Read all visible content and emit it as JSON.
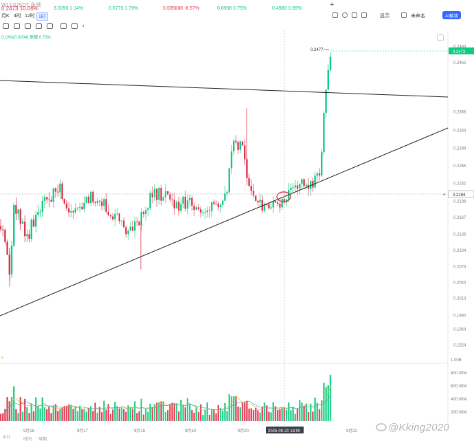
{
  "ticker": {
    "main_symbol": "WLFIUSDT.永续",
    "main_price": "0.2473",
    "main_change": "10.06%",
    "items": [
      {
        "price": "3.0090",
        "change": "1.14%",
        "dir": "up"
      },
      {
        "price": "0.6775",
        "change": "1.79%",
        "dir": "up"
      },
      {
        "price": "0.035088",
        "change": "-0.57%",
        "dir": "dn"
      },
      {
        "price": "0.8998",
        "change": "0.75%",
        "dir": "up"
      },
      {
        "price": "0.4980",
        "change": "0.99%",
        "dir": "up"
      }
    ]
  },
  "toolbar": {
    "timeframes": [
      "月K",
      "4时",
      "12时",
      "1时"
    ],
    "active_timeframe": "1时",
    "display_label": "显示",
    "theme_label": "未命名",
    "ai_label": "AI解读"
  },
  "indicator_line": "0.18%(0.0004)  振幅 0.73%",
  "current_price_tag": "0.2473",
  "peak_label": "0.2477",
  "crosshair_price_tag": "0.2194",
  "crosshair_time_tag": "2025-09-20 18:00",
  "vol_max_label": "0",
  "watermark": "@Kking2020",
  "footer": [
    "4/11",
    "时间",
    "周期"
  ],
  "colors": {
    "up": "#0ecb81",
    "down": "#e0324b",
    "accent": "#3369ff",
    "highlight_circle": "#e0324b"
  },
  "chart_data": {
    "type": "candlestick",
    "title": "",
    "y_ticks": [
      0.2493,
      0.2462,
      0.2368,
      0.2333,
      0.2299,
      0.2265,
      0.2232,
      0.2198,
      0.2167,
      0.2135,
      0.2104,
      0.2073,
      0.2043,
      0.2013,
      0.198,
      0.1954,
      0.1924
    ],
    "x_ticks": [
      "9月16",
      "9月17",
      "9月18",
      "9月19",
      "9月20",
      "9月22"
    ],
    "ylim": [
      0.191,
      0.25
    ],
    "volume_ticks": [
      "1.00B",
      "800.00M",
      "600.00M",
      "400.00M",
      "200.00M"
    ],
    "annotations": {
      "resistance_line": "descending trendline from upper-left to right",
      "support_line": "ascending trendline from lower-left to upper-right",
      "breakout_circle": "touch of support near 2025-09-20 18:00"
    },
    "candles_approx": {
      "open": 0.219,
      "close": 0.2473,
      "high": 0.2477,
      "low": 0.2035
    }
  }
}
